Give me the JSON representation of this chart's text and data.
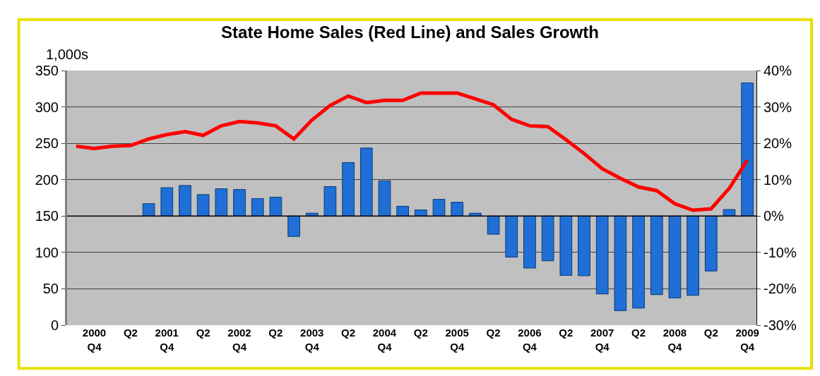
{
  "chart_data": {
    "type": "bar",
    "title": "State Home Sales (Red Line) and Sales Growth",
    "ylabel": "1,000s",
    "categories": [
      null,
      "2000\nQ4",
      null,
      "Q2",
      null,
      "2001\nQ4",
      null,
      "Q2",
      null,
      "2002\nQ4",
      null,
      "Q2",
      null,
      "2003\nQ4",
      null,
      "Q2",
      null,
      "2004\nQ4",
      null,
      "Q2",
      null,
      "2005\nQ4",
      null,
      "Q2",
      null,
      "2006\nQ4",
      null,
      "Q2",
      null,
      "2007\nQ4",
      null,
      "Q2",
      null,
      "2008\nQ4",
      null,
      "Q2",
      null,
      "2009\nQ4"
    ],
    "series": [
      {
        "axis": "y2",
        "color": "#1f6fd6",
        "values": [
          null,
          null,
          null,
          null,
          3.4,
          7.8,
          8.4,
          5.9,
          7.5,
          7.3,
          4.8,
          5.2,
          -5.6,
          0.8,
          8.1,
          14.7,
          18.7,
          9.7,
          2.7,
          1.7,
          4.6,
          3.8,
          0.8,
          -5.0,
          -11.3,
          -14.3,
          -12.3,
          -16.3,
          -16.4,
          -21.4,
          -26.0,
          -25.3,
          -21.6,
          -22.5,
          -21.8,
          -15.1,
          1.8,
          36.6
        ]
      },
      {
        "type": "line",
        "color": "#ff0000",
        "values": [
          246,
          243,
          246,
          247,
          256,
          262,
          266,
          261,
          274,
          280,
          278,
          274,
          256,
          282,
          302,
          315,
          306,
          309,
          309,
          319,
          319,
          319,
          311,
          303,
          283,
          274,
          273,
          255,
          236,
          215,
          202,
          190,
          185,
          167,
          158,
          160,
          188,
          227
        ]
      }
    ],
    "ylim": [
      0,
      350
    ],
    "yticks": [
      0,
      50,
      100,
      150,
      200,
      250,
      300,
      350
    ],
    "y2lim": [
      -30,
      40
    ],
    "y2ticks": [
      {
        "value": -30,
        "label": "-30%"
      },
      {
        "value": -20,
        "label": "-20%"
      },
      {
        "value": -10,
        "label": "-10%"
      },
      {
        "value": 0,
        "label": "0%"
      },
      {
        "value": 10,
        "label": "10%"
      },
      {
        "value": 20,
        "label": "20%"
      },
      {
        "value": 30,
        "label": "30%"
      },
      {
        "value": 40,
        "label": "40%"
      }
    ],
    "ref_lines": [
      {
        "axis": "y2",
        "value": 0,
        "color": "#000000"
      }
    ],
    "grid": "y"
  }
}
